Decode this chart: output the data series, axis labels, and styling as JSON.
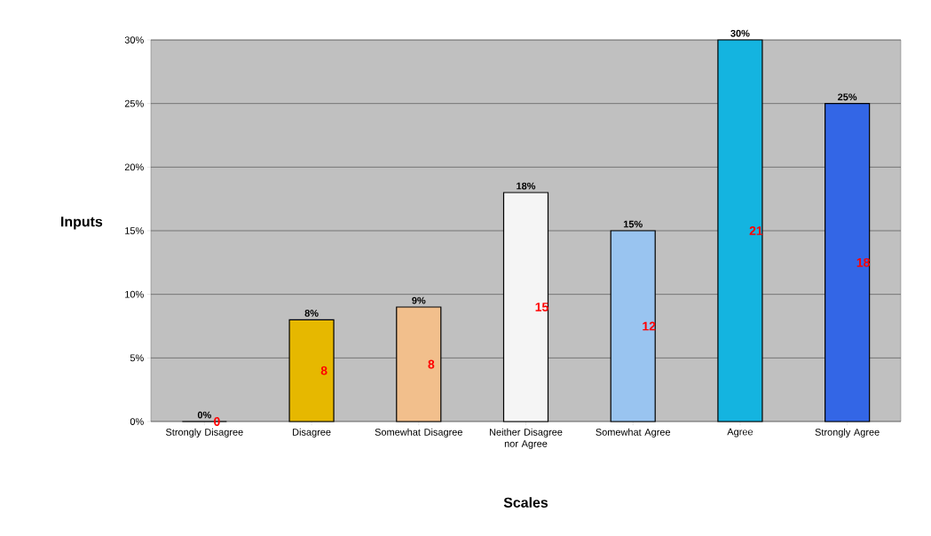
{
  "chart_data": {
    "type": "bar",
    "xlabel": "Scales",
    "ylabel": "Inputs",
    "categories": [
      "Strongly Disagree",
      "Disagree",
      "Somewhat Disagree",
      "Neither Disagree nor Agree",
      "Somewhat Agree",
      "Agree",
      "Strongly Agree"
    ],
    "values": [
      0,
      8,
      9,
      18,
      15,
      30,
      25
    ],
    "value_labels": [
      "0%",
      "8%",
      "9%",
      "18%",
      "15%",
      "30%",
      "25%"
    ],
    "colors": [
      "#cc7a00",
      "#e6b800",
      "#f2bf8c",
      "#f5f5f5",
      "#99c4f0",
      "#14b4e0",
      "#3366e6"
    ],
    "annotations": [
      "0",
      "8",
      "8",
      "15",
      "12",
      "21",
      "18"
    ],
    "ylim": [
      0,
      30
    ],
    "yticks": [
      {
        "value": 0,
        "label": "0%"
      },
      {
        "value": 5,
        "label": "5%"
      },
      {
        "value": 10,
        "label": "10%"
      },
      {
        "value": 15,
        "label": "15%"
      },
      {
        "value": 20,
        "label": "20%"
      },
      {
        "value": 25,
        "label": "25%"
      },
      {
        "value": 30,
        "label": "30%"
      }
    ],
    "grid": "y"
  }
}
